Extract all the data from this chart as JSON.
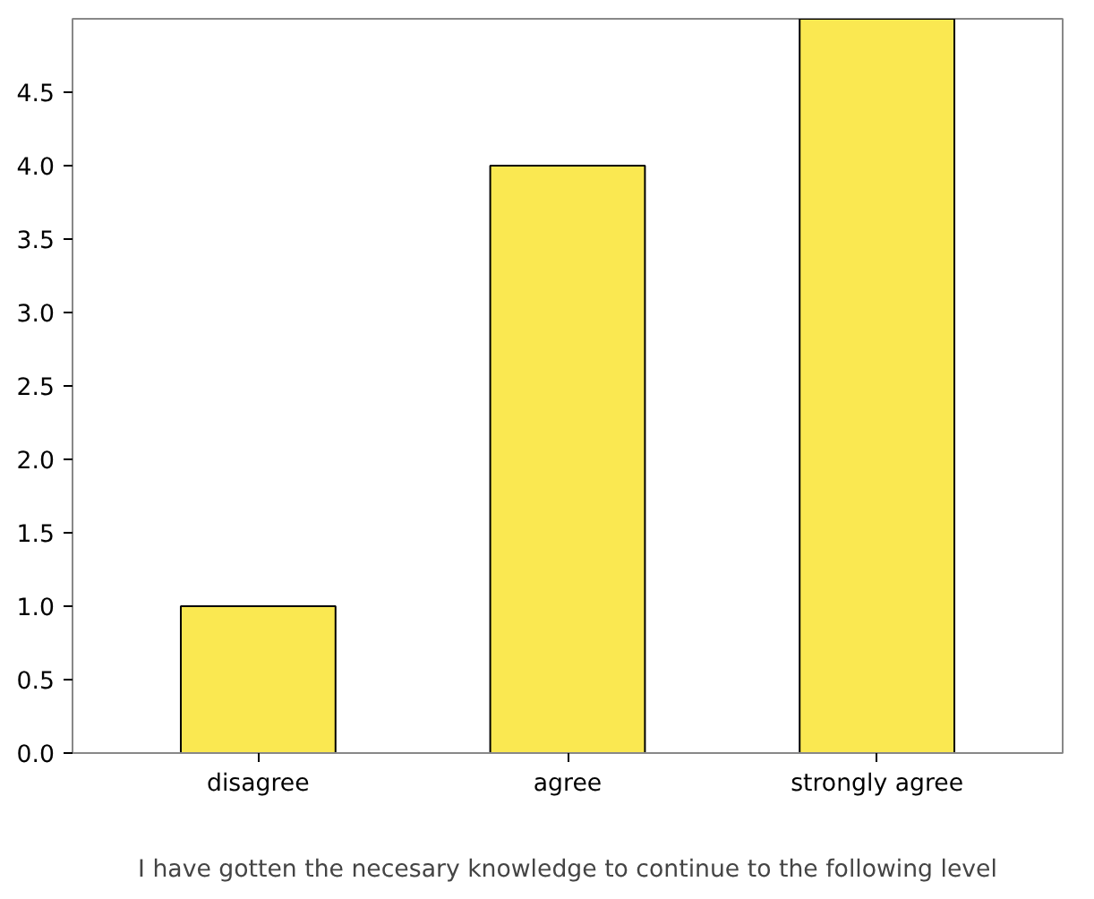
{
  "chart_data": {
    "type": "bar",
    "xlabel": "I have gotten the necesary knowledge to continue to the following level",
    "categories": [
      "disagree",
      "agree",
      "strongly agree"
    ],
    "values": [
      1.0,
      4.0,
      5.0
    ],
    "color": "#fae851",
    "ylim": [
      0,
      5
    ],
    "yticks": [
      {
        "value": 0,
        "label": "0.0"
      },
      {
        "value": 0.5,
        "label": "0.5"
      },
      {
        "value": 1,
        "label": "1.0"
      },
      {
        "value": 1.5,
        "label": "1.5"
      },
      {
        "value": 2,
        "label": "2.0"
      },
      {
        "value": 2.5,
        "label": "2.5"
      },
      {
        "value": 3,
        "label": "3.0"
      },
      {
        "value": 3.5,
        "label": "3.5"
      },
      {
        "value": 4,
        "label": "4.0"
      },
      {
        "value": 4.5,
        "label": "4.5"
      }
    ],
    "grid": false
  }
}
